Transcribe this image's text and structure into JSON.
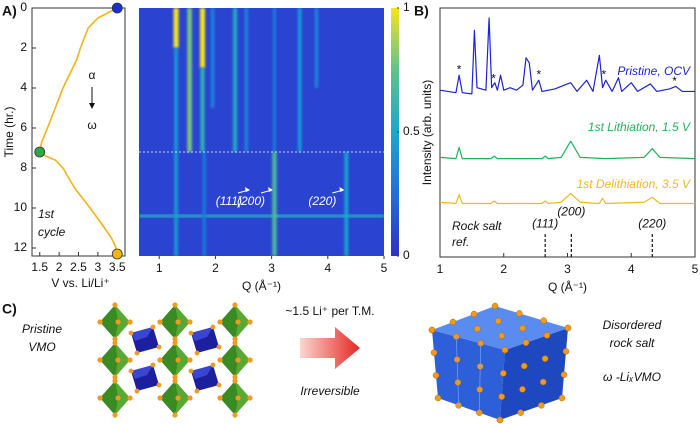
{
  "panel_labels": {
    "a": "A)",
    "b": "B)",
    "c": "C)"
  },
  "chart_data": [
    {
      "type": "line",
      "ylabel": "Time (hr.)",
      "xlabel": "V vs. Li/Li⁺",
      "xlim": [
        1.3,
        3.7
      ],
      "xticks": [
        1.5,
        2,
        2.5,
        3,
        3.5
      ],
      "ylim": [
        0,
        12.4
      ],
      "yticks": [
        0,
        2,
        4,
        6,
        8,
        10,
        12
      ],
      "y_reversed": true,
      "series": [
        {
          "color": "#f5b21b",
          "x": [
            3.5,
            3.3,
            3.0,
            2.75,
            2.55,
            2.45,
            2.3,
            2.1,
            1.9,
            1.7,
            1.55,
            1.5,
            1.65,
            1.9,
            2.1,
            2.4,
            2.8,
            3.1,
            3.35,
            3.45,
            3.5
          ],
          "values": [
            0,
            0.2,
            0.5,
            1.0,
            2.0,
            2.6,
            3.2,
            4.0,
            5.0,
            6.0,
            6.7,
            7.2,
            7.4,
            7.6,
            8.0,
            9.0,
            10.0,
            10.8,
            11.5,
            11.9,
            12.3
          ]
        }
      ],
      "markers": [
        {
          "x": 3.5,
          "y": 0,
          "color": "#1c2fd6"
        },
        {
          "x": 1.5,
          "y": 7.2,
          "color": "#2aa84a"
        },
        {
          "x": 3.5,
          "y": 12.3,
          "color": "#f5b21b"
        }
      ],
      "annotations": [
        "α",
        "ω"
      ],
      "cycle_label": [
        "1st",
        "cycle"
      ]
    },
    {
      "type": "heatmap",
      "xlabel": "Q (Å⁻¹)",
      "xlim": [
        0.64,
        5
      ],
      "xticks": [
        1,
        2,
        3,
        4,
        5
      ],
      "ylim": [
        0,
        12.4
      ],
      "y_reversed": true,
      "colormap": [
        "#2f2fc8",
        "#1f6fe0",
        "#18a8d0",
        "#5cc48a",
        "#f5e51e"
      ],
      "background": 0.08,
      "colorbar": {
        "lim": [
          0,
          1
        ],
        "ticks": [
          0,
          0.5,
          1
        ]
      },
      "streaks": [
        {
          "q": 1.3,
          "t": [
            0,
            2
          ],
          "value": 1.0
        },
        {
          "q": 1.3,
          "t": [
            2,
            12.4
          ],
          "value": 0.45
        },
        {
          "q": 1.54,
          "t": [
            0,
            7.2
          ],
          "value": 0.8
        },
        {
          "q": 1.77,
          "t": [
            0,
            3
          ],
          "value": 1.0
        },
        {
          "q": 1.77,
          "t": [
            3,
            7.2
          ],
          "value": 0.6
        },
        {
          "q": 1.8,
          "t": [
            7.2,
            12.4
          ],
          "value": 0.3
        },
        {
          "q": 1.95,
          "t": [
            0,
            5
          ],
          "value": 0.35
        },
        {
          "q": 2.35,
          "t": [
            0,
            7.2
          ],
          "value": 0.55
        },
        {
          "q": 2.55,
          "t": [
            0,
            7.2
          ],
          "value": 0.35
        },
        {
          "q": 3.05,
          "t": [
            0,
            7.2
          ],
          "value": 0.3
        },
        {
          "q": 3.05,
          "t": [
            7.2,
            12.4
          ],
          "value": 0.7
        },
        {
          "q": 3.5,
          "t": [
            0,
            7.2
          ],
          "value": 0.45
        },
        {
          "q": 3.8,
          "t": [
            0,
            4
          ],
          "value": 0.35
        },
        {
          "q": 4.33,
          "t": [
            7.2,
            12.4
          ],
          "value": 0.5
        }
      ],
      "bands": [
        {
          "t": 10.4,
          "value": 0.55
        }
      ],
      "reference_time": 7.2,
      "annotations": [
        {
          "label": "(111)",
          "q": 2.65,
          "t": 9.1
        },
        {
          "label": "(200)",
          "q": 3.06,
          "t": 9.1
        },
        {
          "label": "(220)",
          "q": 4.33,
          "t": 9.1
        }
      ]
    },
    {
      "type": "line",
      "xlabel": "Q (Å⁻¹)",
      "ylabel": "Intensity (arb. units)",
      "xlim": [
        1,
        5
      ],
      "xticks": [
        1,
        2,
        3,
        4,
        5
      ],
      "ylim": [
        0,
        10
      ],
      "series": [
        {
          "name": "Pristine, OCV",
          "color": "#1c22d8",
          "offset": 6.5,
          "x": [
            1.0,
            1.25,
            1.3,
            1.35,
            1.5,
            1.54,
            1.58,
            1.72,
            1.77,
            1.81,
            1.86,
            1.9,
            1.95,
            2.0,
            2.1,
            2.2,
            2.3,
            2.35,
            2.4,
            2.45,
            2.55,
            2.6,
            2.8,
            3.05,
            3.15,
            3.3,
            3.4,
            3.5,
            3.55,
            3.6,
            3.7,
            3.8,
            3.85,
            4.0,
            4.1,
            4.3,
            4.4,
            4.6,
            4.7,
            4.8,
            5.0
          ],
          "values": [
            0.2,
            0.1,
            0.8,
            0.1,
            0.05,
            2.6,
            0.3,
            0.2,
            3.1,
            0.3,
            0.5,
            0.2,
            0.8,
            0.2,
            0.3,
            0.2,
            0.4,
            1.5,
            1.3,
            0.2,
            0.6,
            0.15,
            0.25,
            0.5,
            0.15,
            0.6,
            0.15,
            1.6,
            0.3,
            0.6,
            0.15,
            0.7,
            0.15,
            0.5,
            0.15,
            0.45,
            0.15,
            0.25,
            0.35,
            0.15,
            0.15
          ]
        },
        {
          "name": "1st Lithiation, 1.5 V",
          "color": "#1fb35a",
          "offset": 3.9,
          "x": [
            1.0,
            1.25,
            1.3,
            1.35,
            1.8,
            1.85,
            1.9,
            2.6,
            2.65,
            2.7,
            2.9,
            3.05,
            3.2,
            3.6,
            4.2,
            4.33,
            4.45,
            5.0
          ],
          "values": [
            0.1,
            0.05,
            0.5,
            0.05,
            0.05,
            0.15,
            0.05,
            0.05,
            0.15,
            0.05,
            0.1,
            0.75,
            0.1,
            0.05,
            0.1,
            0.45,
            0.1,
            0.05
          ]
        },
        {
          "name": "1st Delithiation, 3.5 V",
          "color": "#f2b81c",
          "offset": 2.1,
          "x": [
            1.0,
            1.25,
            1.3,
            1.35,
            1.8,
            1.85,
            1.9,
            2.6,
            2.65,
            2.7,
            2.9,
            3.05,
            3.2,
            3.5,
            3.55,
            3.6,
            4.2,
            4.33,
            4.45,
            5.0
          ],
          "values": [
            0.1,
            0.05,
            0.4,
            0.05,
            0.05,
            0.15,
            0.05,
            0.05,
            0.15,
            0.05,
            0.1,
            0.45,
            0.1,
            0.05,
            0.25,
            0.05,
            0.1,
            0.3,
            0.05,
            0.05
          ]
        }
      ],
      "asterisks": {
        "label": "*",
        "q": [
          1.3,
          1.84,
          2.55,
          3.57,
          4.68
        ]
      },
      "reference": {
        "label": [
          "Rock salt",
          "ref."
        ],
        "height": 1,
        "peaks": [
          {
            "q": 2.65,
            "label": "(111)"
          },
          {
            "q": 3.06,
            "label": "(200)"
          },
          {
            "q": 4.33,
            "label": "(220)"
          }
        ]
      }
    }
  ],
  "schematic": {
    "pristine": [
      "Pristine",
      "VMO"
    ],
    "transfer": "~1.5  Li⁺ per T.M.",
    "irreversible": "Irreversible",
    "product": [
      "Disordered",
      "rock salt"
    ],
    "formula": "ω -LiₓVMO"
  }
}
